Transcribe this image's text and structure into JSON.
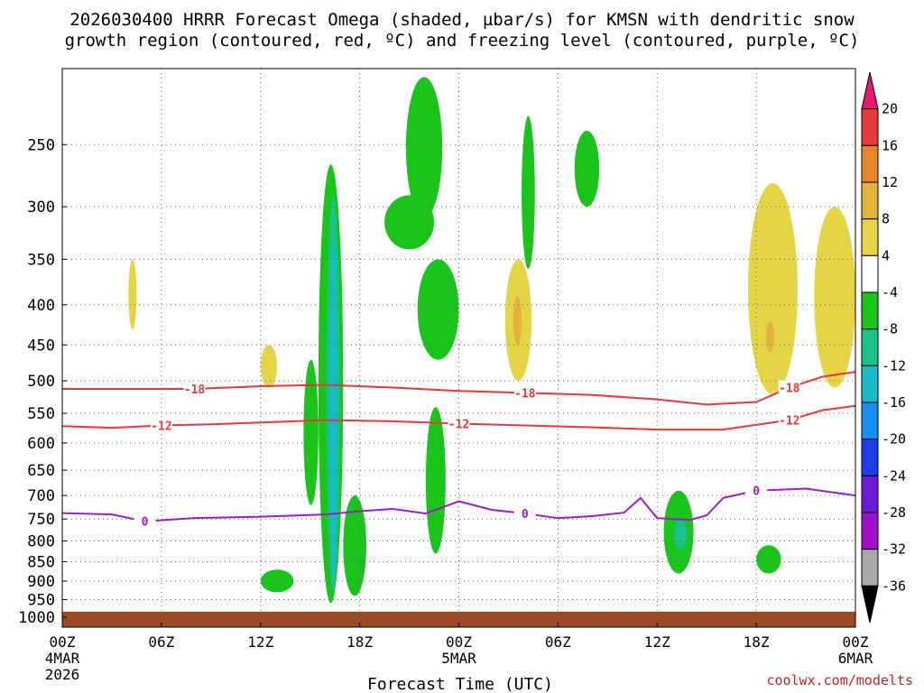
{
  "chart_data": {
    "type": "heatmap",
    "title": "2026030400 HRRR Forecast Omega (shaded, µbar/s) for KMSN with dendritic snow",
    "title_line2": "growth region (contoured, red, ºC) and freezing level (contoured, purple, ºC)",
    "xlabel": "Forecast Time (UTC)",
    "ylabel": "",
    "x_unit": "forecast hours from 2026030400",
    "xlim": [
      0,
      48
    ],
    "x_ticks": [
      {
        "hour": 0,
        "label": "00Z",
        "sub1": "4MAR",
        "sub2": "2026"
      },
      {
        "hour": 6,
        "label": "06Z",
        "sub1": "",
        "sub2": ""
      },
      {
        "hour": 12,
        "label": "12Z",
        "sub1": "",
        "sub2": ""
      },
      {
        "hour": 18,
        "label": "18Z",
        "sub1": "",
        "sub2": ""
      },
      {
        "hour": 24,
        "label": "00Z",
        "sub1": "5MAR",
        "sub2": ""
      },
      {
        "hour": 30,
        "label": "06Z",
        "sub1": "",
        "sub2": ""
      },
      {
        "hour": 36,
        "label": "12Z",
        "sub1": "",
        "sub2": ""
      },
      {
        "hour": 42,
        "label": "18Z",
        "sub1": "",
        "sub2": ""
      },
      {
        "hour": 48,
        "label": "00Z",
        "sub1": "6MAR",
        "sub2": ""
      }
    ],
    "y_unit": "hPa",
    "y_scale": "log-pressure",
    "ylim": [
      1030,
      200
    ],
    "y_ticks": [
      250,
      300,
      350,
      400,
      450,
      500,
      550,
      600,
      650,
      700,
      750,
      800,
      850,
      900,
      950,
      1000
    ],
    "grid": true,
    "colorbar": {
      "levels": [
        20,
        16,
        12,
        8,
        4,
        -4,
        -8,
        -12,
        -16,
        -20,
        -24,
        -28,
        -32,
        -36
      ],
      "labels": [
        "20",
        "16",
        "12",
        "8",
        "4",
        "-4",
        "-8",
        "-12",
        "-16",
        "-20",
        "-24",
        "-28",
        "-32",
        "-36"
      ],
      "colors": [
        "#e8186c",
        "#e83a3a",
        "#e6862a",
        "#e4b23c",
        "#e6d447",
        "#ffffff",
        "#1bc41b",
        "#18c289",
        "#16bcc8",
        "#1a8ef0",
        "#1a3ee8",
        "#6d1ad6",
        "#a010c8",
        "#a8a8a8",
        "#000000"
      ]
    },
    "omega_areas": [
      {
        "category": "-8",
        "t0": 15.5,
        "t1": 17.0,
        "p_top": 265,
        "p_bot": 960
      },
      {
        "category": "-12",
        "t0": 16.0,
        "t1": 16.8,
        "p_top": 290,
        "p_bot": 930
      },
      {
        "category": "-16",
        "t0": 16.2,
        "t1": 16.6,
        "p_top": 330,
        "p_bot": 900
      },
      {
        "category": "-8",
        "t0": 17.0,
        "t1": 18.4,
        "p_top": 700,
        "p_bot": 940
      },
      {
        "category": "-8",
        "t0": 19.5,
        "t1": 22.5,
        "p_top": 290,
        "p_bot": 340
      },
      {
        "category": "-8",
        "t0": 20.8,
        "t1": 23.0,
        "p_top": 205,
        "p_bot": 310
      },
      {
        "category": "-8",
        "t0": 21.5,
        "t1": 24.0,
        "p_top": 350,
        "p_bot": 470
      },
      {
        "category": "-8",
        "t0": 22.0,
        "t1": 23.2,
        "p_top": 540,
        "p_bot": 830
      },
      {
        "category": "-8",
        "t0": 27.8,
        "t1": 28.6,
        "p_top": 230,
        "p_bot": 360
      },
      {
        "category": "-8",
        "t0": 31.0,
        "t1": 32.5,
        "p_top": 240,
        "p_bot": 300
      },
      {
        "category": "-8",
        "t0": 36.4,
        "t1": 38.2,
        "p_top": 690,
        "p_bot": 880
      },
      {
        "category": "-12",
        "t0": 37.0,
        "t1": 37.8,
        "p_top": 750,
        "p_bot": 820
      },
      {
        "category": "-8",
        "t0": 14.6,
        "t1": 15.5,
        "p_top": 470,
        "p_bot": 720
      },
      {
        "category": "-8",
        "t0": 12.0,
        "t1": 14.0,
        "p_top": 870,
        "p_bot": 930
      },
      {
        "category": "-8",
        "t0": 42.0,
        "t1": 43.5,
        "p_top": 810,
        "p_bot": 880
      },
      {
        "category": "4",
        "t0": 26.8,
        "t1": 28.4,
        "p_top": 350,
        "p_bot": 500
      },
      {
        "category": "8",
        "t0": 27.3,
        "t1": 27.8,
        "p_top": 390,
        "p_bot": 450
      },
      {
        "category": "4",
        "t0": 41.5,
        "t1": 44.5,
        "p_top": 280,
        "p_bot": 520
      },
      {
        "category": "4",
        "t0": 45.5,
        "t1": 48.0,
        "p_top": 300,
        "p_bot": 510
      },
      {
        "category": "8",
        "t0": 42.6,
        "t1": 43.1,
        "p_top": 420,
        "p_bot": 460
      },
      {
        "category": "4",
        "t0": 12.0,
        "t1": 13.0,
        "p_top": 450,
        "p_bot": 510
      },
      {
        "category": "4",
        "t0": 4.0,
        "t1": 4.5,
        "p_top": 350,
        "p_bot": 430
      }
    ],
    "contours": [
      {
        "name": "dendritic growth -18",
        "label": "-18",
        "color": "#e8383a",
        "points": [
          [
            0,
            512
          ],
          [
            4,
            512
          ],
          [
            8,
            512
          ],
          [
            12,
            508
          ],
          [
            16,
            506
          ],
          [
            20,
            510
          ],
          [
            24,
            515
          ],
          [
            28,
            518
          ],
          [
            32,
            521
          ],
          [
            36,
            528
          ],
          [
            39,
            536
          ],
          [
            42,
            532
          ],
          [
            44,
            510
          ],
          [
            46,
            494
          ],
          [
            48,
            487
          ]
        ]
      },
      {
        "name": "dendritic growth -12",
        "label": "-12",
        "color": "#e8383a",
        "points": [
          [
            0,
            571
          ],
          [
            3,
            574
          ],
          [
            6,
            570
          ],
          [
            9,
            568
          ],
          [
            12,
            565
          ],
          [
            16,
            561
          ],
          [
            20,
            563
          ],
          [
            24,
            567
          ],
          [
            28,
            570
          ],
          [
            32,
            573
          ],
          [
            36,
            577
          ],
          [
            40,
            577
          ],
          [
            44,
            561
          ],
          [
            46,
            545
          ],
          [
            48,
            538
          ]
        ]
      },
      {
        "name": "freezing level 0",
        "label": "0",
        "color": "#9a1ec8",
        "points": [
          [
            0,
            737
          ],
          [
            3,
            740
          ],
          [
            5,
            755
          ],
          [
            8,
            748
          ],
          [
            12,
            745
          ],
          [
            16,
            740
          ],
          [
            18,
            733
          ],
          [
            20,
            728
          ],
          [
            22,
            738
          ],
          [
            24,
            712
          ],
          [
            26,
            730
          ],
          [
            28,
            738
          ],
          [
            30,
            748
          ],
          [
            32,
            744
          ],
          [
            34,
            736
          ],
          [
            35,
            705
          ],
          [
            36,
            748
          ],
          [
            38,
            752
          ],
          [
            39,
            742
          ],
          [
            40,
            705
          ],
          [
            42,
            690
          ],
          [
            45,
            686
          ],
          [
            48,
            700
          ]
        ]
      }
    ],
    "surface_shading": {
      "label": "below ground",
      "color": "#9b4a23",
      "p_top": 1000
    }
  },
  "credit": "coolwx.com/modelts"
}
